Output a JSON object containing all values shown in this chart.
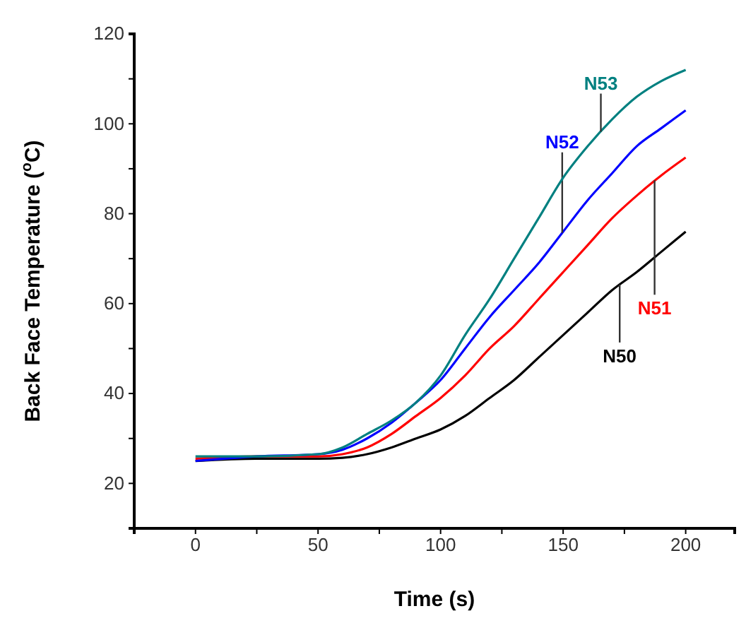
{
  "chart_data": {
    "type": "line",
    "xlabel": "Time (s)",
    "ylabel": "Back Face Temperature ($^{o}$C)",
    "xlim": [
      -25,
      220
    ],
    "ylim": [
      10,
      120
    ],
    "xticks": [
      {
        "value": -25,
        "label": null
      },
      0,
      {
        "value": 25,
        "label": null
      },
      50,
      {
        "value": 75,
        "label": null
      },
      100,
      {
        "value": 125,
        "label": null
      },
      150,
      {
        "value": 175,
        "label": null
      },
      200
    ],
    "yticks": [
      {
        "value": 10,
        "label": null
      },
      20,
      {
        "value": 30,
        "label": null
      },
      40,
      {
        "value": 50,
        "label": null
      },
      60,
      {
        "value": 70,
        "label": null
      },
      80,
      {
        "value": 90,
        "label": null
      },
      100,
      {
        "value": 110,
        "label": null
      },
      120
    ],
    "x": [
      0,
      25,
      50,
      60,
      70,
      80,
      90,
      100,
      110,
      120,
      130,
      140,
      150,
      160,
      170,
      180,
      190,
      200
    ],
    "series": [
      {
        "name": "N50",
        "color": "#000000",
        "values": [
          25,
          25.5,
          25.5,
          25.7,
          26.5,
          28,
          30,
          32,
          35,
          39,
          43,
          48,
          53,
          58,
          63,
          67,
          71.5,
          76
        ]
      },
      {
        "name": "N51",
        "color": "#ff0000",
        "values": [
          25.5,
          26,
          26,
          26.5,
          28,
          31,
          35,
          39,
          44,
          50,
          55,
          61,
          67,
          73,
          79,
          84,
          88.5,
          92.5
        ]
      },
      {
        "name": "N52",
        "color": "#0000ff",
        "values": [
          25,
          26,
          26.5,
          27.5,
          30,
          33.5,
          38,
          43,
          50,
          57,
          63,
          69,
          76,
          83,
          89,
          95,
          99,
          103
        ]
      },
      {
        "name": "N53",
        "color": "#008080",
        "values": [
          26,
          26,
          26.5,
          28,
          31,
          34,
          38,
          44,
          53,
          61,
          70,
          79,
          88,
          95,
          101,
          106,
          109.5,
          112
        ]
      }
    ],
    "grid": false,
    "legend": false,
    "marker": "none",
    "line_style": "solid"
  }
}
